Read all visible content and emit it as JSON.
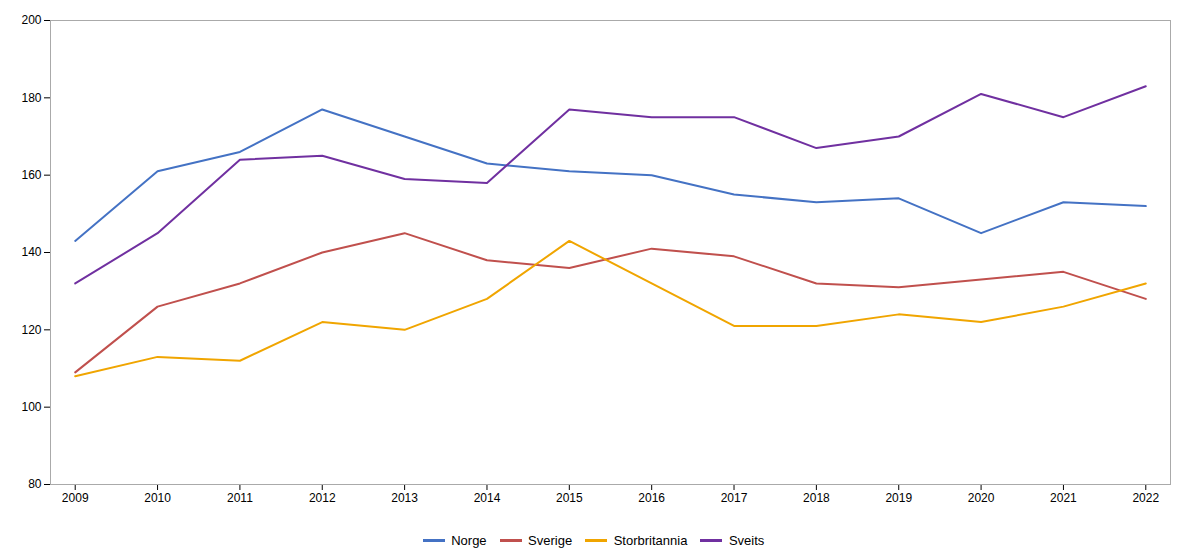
{
  "chart_data": {
    "type": "line",
    "x": [
      2009,
      2010,
      2011,
      2012,
      2013,
      2014,
      2015,
      2016,
      2017,
      2018,
      2019,
      2020,
      2021,
      2022
    ],
    "xlim": [
      2008.7,
      2022.3
    ],
    "xticks": [
      2009,
      2010,
      2011,
      2012,
      2013,
      2014,
      2015,
      2016,
      2017,
      2018,
      2019,
      2020,
      2021,
      2022
    ],
    "ylim": [
      80,
      200
    ],
    "yticks": [
      80,
      100,
      120,
      140,
      160,
      180,
      200
    ],
    "grid": false,
    "legend": "bottom",
    "series": [
      {
        "name": "Norge",
        "color": "#4472C4",
        "values": [
          143,
          161,
          166,
          177,
          170,
          163,
          161,
          160,
          155,
          153,
          154,
          145,
          153,
          152
        ]
      },
      {
        "name": "Sverige",
        "color": "#C0504D",
        "values": [
          109,
          126,
          132,
          140,
          145,
          138,
          136,
          141,
          139,
          132,
          131,
          133,
          135,
          128
        ]
      },
      {
        "name": "Storbritannia",
        "color": "#F0A500",
        "values": [
          108,
          113,
          112,
          122,
          120,
          128,
          143,
          132,
          121,
          121,
          124,
          122,
          126,
          132
        ]
      },
      {
        "name": "Sveits",
        "color": "#7030A0",
        "values": [
          132,
          145,
          164,
          165,
          159,
          158,
          177,
          175,
          175,
          167,
          170,
          181,
          175,
          183
        ]
      }
    ]
  }
}
